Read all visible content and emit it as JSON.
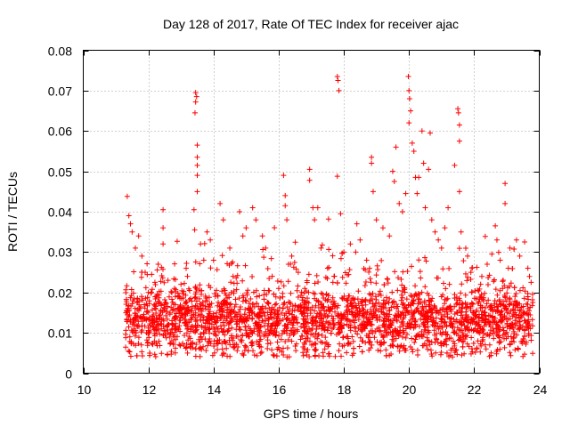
{
  "chart_data": {
    "type": "scatter",
    "title": "Day 128 of 2017, Rate Of TEC Index for receiver ajac",
    "xlabel": "GPS time / hours",
    "ylabel": "ROTI / TECUs",
    "xlim": [
      10,
      24
    ],
    "ylim": [
      0,
      0.08
    ],
    "xticks": [
      10,
      12,
      14,
      16,
      18,
      20,
      22,
      24
    ],
    "xtick_labels": [
      "10",
      "12",
      "14",
      "16",
      "18",
      "20",
      "22",
      "24"
    ],
    "yticks": [
      0,
      0.01,
      0.02,
      0.03,
      0.04,
      0.05,
      0.06,
      0.07,
      0.08
    ],
    "ytick_labels": [
      "0",
      "0.01",
      "0.02",
      "0.03",
      "0.04",
      "0.05",
      "0.06",
      "0.07",
      "0.08"
    ],
    "grid": true,
    "marker": "plus",
    "series_color": "#ff0000",
    "series": [
      {
        "name": "ROTI",
        "points": [
          [
            11.35,
            0.0438
          ],
          [
            11.4,
            0.039
          ],
          [
            11.45,
            0.037
          ],
          [
            11.5,
            0.035
          ],
          [
            11.6,
            0.031
          ],
          [
            11.7,
            0.034
          ],
          [
            11.8,
            0.029
          ],
          [
            11.9,
            0.025
          ],
          [
            12.0,
            0.02
          ],
          [
            12.1,
            0.0245
          ],
          [
            12.2,
            0.0225
          ],
          [
            12.3,
            0.027
          ],
          [
            12.45,
            0.0405
          ],
          [
            12.45,
            0.036
          ],
          [
            12.45,
            0.032
          ],
          [
            12.6,
            0.023
          ],
          [
            12.8,
            0.021
          ],
          [
            13.0,
            0.022
          ],
          [
            13.2,
            0.024
          ],
          [
            13.4,
            0.0405
          ],
          [
            13.42,
            0.0355
          ],
          [
            13.45,
            0.0695
          ],
          [
            13.48,
            0.0685
          ],
          [
            13.45,
            0.0672
          ],
          [
            13.43,
            0.0645
          ],
          [
            13.5,
            0.0565
          ],
          [
            13.5,
            0.0535
          ],
          [
            13.5,
            0.0515
          ],
          [
            13.5,
            0.049
          ],
          [
            13.5,
            0.045
          ],
          [
            13.6,
            0.032
          ],
          [
            13.7,
            0.028
          ],
          [
            13.8,
            0.035
          ],
          [
            13.9,
            0.033
          ],
          [
            14.0,
            0.028
          ],
          [
            14.2,
            0.042
          ],
          [
            14.3,
            0.038
          ],
          [
            14.5,
            0.031
          ],
          [
            14.6,
            0.024
          ],
          [
            14.8,
            0.04
          ],
          [
            14.9,
            0.034
          ],
          [
            15.0,
            0.036
          ],
          [
            15.2,
            0.041
          ],
          [
            15.3,
            0.038
          ],
          [
            15.5,
            0.034
          ],
          [
            15.6,
            0.031
          ],
          [
            15.8,
            0.024
          ],
          [
            16.0,
            0.021
          ],
          [
            16.15,
            0.049
          ],
          [
            16.2,
            0.044
          ],
          [
            16.2,
            0.0415
          ],
          [
            16.25,
            0.038
          ],
          [
            16.3,
            0.027
          ],
          [
            16.4,
            0.029
          ],
          [
            16.6,
            0.025
          ],
          [
            16.8,
            0.021
          ],
          [
            16.95,
            0.0505
          ],
          [
            16.95,
            0.0478
          ],
          [
            17.05,
            0.041
          ],
          [
            17.1,
            0.038
          ],
          [
            17.2,
            0.041
          ],
          [
            17.3,
            0.031
          ],
          [
            17.5,
            0.026
          ],
          [
            17.7,
            0.024
          ],
          [
            17.8,
            0.0735
          ],
          [
            17.82,
            0.0725
          ],
          [
            17.85,
            0.07
          ],
          [
            17.8,
            0.0488
          ],
          [
            17.9,
            0.0395
          ],
          [
            18.0,
            0.03
          ],
          [
            18.2,
            0.032
          ],
          [
            18.4,
            0.037
          ],
          [
            18.5,
            0.033
          ],
          [
            18.7,
            0.028
          ],
          [
            18.85,
            0.0535
          ],
          [
            18.85,
            0.052
          ],
          [
            18.9,
            0.045
          ],
          [
            19.0,
            0.038
          ],
          [
            19.2,
            0.036
          ],
          [
            19.4,
            0.034
          ],
          [
            19.5,
            0.05
          ],
          [
            19.55,
            0.0475
          ],
          [
            19.6,
            0.056
          ],
          [
            19.7,
            0.042
          ],
          [
            19.8,
            0.04
          ],
          [
            19.9,
            0.0445
          ],
          [
            19.98,
            0.0735
          ],
          [
            20.0,
            0.07
          ],
          [
            20.02,
            0.068
          ],
          [
            20.05,
            0.065
          ],
          [
            20.0,
            0.062
          ],
          [
            20.1,
            0.057
          ],
          [
            20.15,
            0.055
          ],
          [
            20.2,
            0.0485
          ],
          [
            20.25,
            0.0445
          ],
          [
            20.3,
            0.0485
          ],
          [
            20.4,
            0.06
          ],
          [
            20.45,
            0.052
          ],
          [
            20.5,
            0.041
          ],
          [
            20.6,
            0.0505
          ],
          [
            20.65,
            0.0595
          ],
          [
            20.7,
            0.038
          ],
          [
            20.8,
            0.035
          ],
          [
            20.9,
            0.033
          ],
          [
            21.0,
            0.031
          ],
          [
            21.1,
            0.036
          ],
          [
            21.2,
            0.041
          ],
          [
            21.4,
            0.0515
          ],
          [
            21.5,
            0.0655
          ],
          [
            21.52,
            0.0645
          ],
          [
            21.55,
            0.0615
          ],
          [
            21.55,
            0.0575
          ],
          [
            21.55,
            0.045
          ],
          [
            21.6,
            0.035
          ],
          [
            21.8,
            0.029
          ],
          [
            21.9,
            0.025
          ],
          [
            22.2,
            0.022
          ],
          [
            22.4,
            0.027
          ],
          [
            22.65,
            0.0365
          ],
          [
            22.7,
            0.033
          ],
          [
            22.8,
            0.028
          ],
          [
            22.95,
            0.047
          ],
          [
            22.95,
            0.042
          ],
          [
            23.1,
            0.031
          ],
          [
            23.3,
            0.033
          ],
          [
            23.4,
            0.029
          ],
          [
            23.55,
            0.0325
          ],
          [
            23.65,
            0.026
          ],
          [
            23.75,
            0.0225
          ]
        ],
        "band_note": "Dense cluster of points between 0.004 and ~0.025 across 11.3–23.8 h"
      }
    ]
  }
}
